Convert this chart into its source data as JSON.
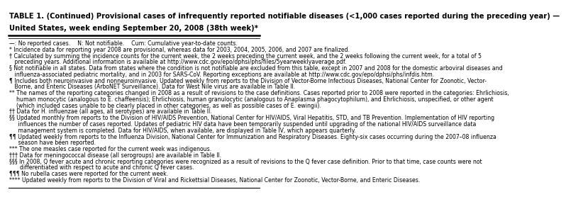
{
  "title_line1": "TABLE 1. (Continued) Provisional cases of infrequently reported notifiable diseases (<1,000 cases reported during the preceding year) —",
  "title_line2": "United States, week ending September 20, 2008 (38th week)*",
  "background_color": "#ffffff",
  "border_color": "#000000",
  "title_fontsize": 7.2,
  "body_fontsize": 5.6,
  "footnote_lines": [
    "—: No reported cases.    N: Not notifiable.    Cum: Cumulative year-to-date counts.",
    "* Incidence data for reporting year 2008 are provisional, whereas data for 2003, 2004, 2005, 2006, and 2007 are finalized.",
    "† Calculated by summing the incidence counts for the current week, the 2 weeks preceding the current week, and the 2 weeks following the current week, for a total of 5",
    "   preceding years. Additional information is available at http://www.cdc.gov/epo/dphsi/phs/files/5yearweeklyaverage.pdf.",
    "§ Not notifiable in all states. Data from states where the condition is not notifiable are excluded from this table, except in 2007 and 2008 for the domestic arboviral diseases and",
    "   influenza-associated pediatric mortality, and in 2003 for SARS-CoV. Reporting exceptions are available at http://www.cdc.gov/epo/dphsi/phs/infdis.htm.",
    "¶ Includes both neuroinvasive and nonneuroinvasive. Updated weekly from reports to the Division of Vector-Borne Infectious Diseases, National Center for Zoonotic, Vector-",
    "   Borne, and Enteric Diseases (ArboNET Surveillance). Data for West Nile virus are available in Table II.",
    "** The names of the reporting categories changed in 2008 as a result of revisions to the case definitions. Cases reported prior to 2008 were reported in the categories: Ehrlichiosis,",
    "    human monocytic (analogous to E. chaffeensis); Ehrlichiosis, human granulocytic (analogous to Anaplasma phagocytophilum), and Ehrlichiosis, unspecified, or other agent",
    "    (which included cases unable to be clearly placed in other categories, as well as possible cases of E. ewingii).",
    "†† Data for H. influenzae (all ages, all serotypes) are available in Table II.",
    "§§ Updated monthly from reports to the Division of HIV/AIDS Prevention, National Center for HIV/AIDS, Viral Hepatitis, STD, and TB Prevention. Implementation of HIV reporting",
    "     influences the number of cases reported. Updates of pediatric HIV data have been temporarily suspended until upgrading of the national HIV/AIDS surveillance data",
    "     management system is completed. Data for HIV/AIDS, when available, are displayed in Table IV, which appears quarterly.",
    "¶¶ Updated weekly from reports to the Influenza Division, National Center for Immunization and Respiratory Diseases. Eighty-six cases occurring during the 2007–08 influenza",
    "     season have been reported.",
    "*** The one measles case reported for the current week was indigenous.",
    "††† Data for meningococcal disease (all serogroups) are available in Table II.",
    "§§§ In 2008, Q fever acute and chronic reporting categories were recognized as a result of revisions to the Q fever case definition. Prior to that time, case counts were not",
    "      differentiated with respect to acute and chronic Q fever cases.",
    "¶¶¶ No rubella cases were reported for the current week.",
    "**** Updated weekly from reports to the Division of Viral and Rickettsial Diseases, National Center for Zoonotic, Vector-Borne, and Enteric Diseases."
  ]
}
